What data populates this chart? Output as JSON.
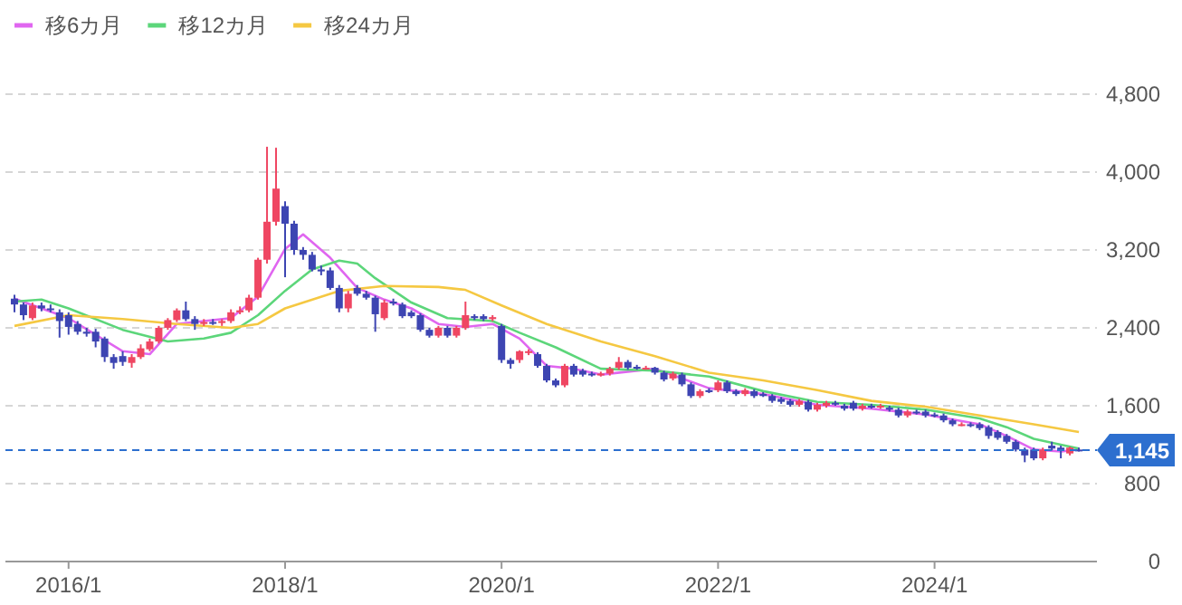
{
  "chart_data": {
    "type": "candlestick",
    "x": [
      "2015-07",
      "2015-08",
      "2015-09",
      "2015-10",
      "2015-11",
      "2015-12",
      "2016-01",
      "2016-02",
      "2016-03",
      "2016-04",
      "2016-05",
      "2016-06",
      "2016-07",
      "2016-08",
      "2016-09",
      "2016-10",
      "2016-11",
      "2016-12",
      "2017-01",
      "2017-02",
      "2017-03",
      "2017-04",
      "2017-05",
      "2017-06",
      "2017-07",
      "2017-08",
      "2017-09",
      "2017-10",
      "2017-11",
      "2017-12",
      "2018-01",
      "2018-02",
      "2018-03",
      "2018-04",
      "2018-05",
      "2018-06",
      "2018-07",
      "2018-08",
      "2018-09",
      "2018-10",
      "2018-11",
      "2018-12",
      "2019-01",
      "2019-02",
      "2019-03",
      "2019-04",
      "2019-05",
      "2019-06",
      "2019-07",
      "2019-08",
      "2019-09",
      "2019-10",
      "2019-11",
      "2019-12",
      "2020-01",
      "2020-02",
      "2020-03",
      "2020-04",
      "2020-05",
      "2020-06",
      "2020-07",
      "2020-08",
      "2020-09",
      "2020-10",
      "2020-11",
      "2020-12",
      "2021-01",
      "2021-02",
      "2021-03",
      "2021-04",
      "2021-05",
      "2021-06",
      "2021-07",
      "2021-08",
      "2021-09",
      "2021-10",
      "2021-11",
      "2021-12",
      "2022-01",
      "2022-02",
      "2022-03",
      "2022-04",
      "2022-05",
      "2022-06",
      "2022-07",
      "2022-08",
      "2022-09",
      "2022-10",
      "2022-11",
      "2022-12",
      "2023-01",
      "2023-02",
      "2023-03",
      "2023-04",
      "2023-05",
      "2023-06",
      "2023-07",
      "2023-08",
      "2023-09",
      "2023-10",
      "2023-11",
      "2023-12",
      "2024-01",
      "2024-02",
      "2024-03",
      "2024-04",
      "2024-05",
      "2024-06",
      "2024-07",
      "2024-08",
      "2024-09",
      "2024-10",
      "2024-11",
      "2024-12",
      "2025-01",
      "2025-02",
      "2025-03",
      "2025-04",
      "2025-05"
    ],
    "ohlc": [
      [
        2700,
        2740,
        2560,
        2640
      ],
      [
        2640,
        2660,
        2480,
        2530
      ],
      [
        2500,
        2660,
        2480,
        2630
      ],
      [
        2630,
        2660,
        2570,
        2600
      ],
      [
        2600,
        2640,
        2560,
        2590
      ],
      [
        2560,
        2590,
        2300,
        2470
      ],
      [
        2530,
        2560,
        2330,
        2410
      ],
      [
        2440,
        2470,
        2330,
        2360
      ],
      [
        2360,
        2400,
        2310,
        2340
      ],
      [
        2360,
        2390,
        2200,
        2260
      ],
      [
        2290,
        2310,
        2050,
        2100
      ],
      [
        2100,
        2130,
        1980,
        2040
      ],
      [
        2110,
        2160,
        2010,
        2050
      ],
      [
        2040,
        2130,
        1990,
        2100
      ],
      [
        2100,
        2230,
        2080,
        2190
      ],
      [
        2180,
        2290,
        2160,
        2260
      ],
      [
        2260,
        2420,
        2240,
        2400
      ],
      [
        2400,
        2500,
        2380,
        2480
      ],
      [
        2480,
        2600,
        2460,
        2580
      ],
      [
        2580,
        2670,
        2470,
        2490
      ],
      [
        2490,
        2520,
        2380,
        2440
      ],
      [
        2440,
        2490,
        2420,
        2460
      ],
      [
        2460,
        2490,
        2430,
        2450
      ],
      [
        2450,
        2490,
        2420,
        2470
      ],
      [
        2470,
        2590,
        2450,
        2560
      ],
      [
        2560,
        2620,
        2540,
        2580
      ],
      [
        2580,
        2740,
        2560,
        2710
      ],
      [
        2710,
        3120,
        2690,
        3100
      ],
      [
        3100,
        4260,
        3060,
        3490
      ],
      [
        3490,
        4250,
        3450,
        3830
      ],
      [
        3650,
        3700,
        2920,
        3470
      ],
      [
        3470,
        3500,
        3150,
        3200
      ],
      [
        3200,
        3230,
        3100,
        3150
      ],
      [
        3150,
        3180,
        2980,
        3000
      ],
      [
        3000,
        3040,
        2940,
        2980
      ],
      [
        2990,
        3020,
        2790,
        2810
      ],
      [
        2810,
        2840,
        2560,
        2600
      ],
      [
        2600,
        2780,
        2560,
        2750
      ],
      [
        2810,
        2840,
        2730,
        2750
      ],
      [
        2750,
        2780,
        2690,
        2710
      ],
      [
        2710,
        2730,
        2360,
        2540
      ],
      [
        2500,
        2690,
        2480,
        2660
      ],
      [
        2670,
        2700,
        2630,
        2650
      ],
      [
        2640,
        2660,
        2500,
        2520
      ],
      [
        2560,
        2580,
        2500,
        2520
      ],
      [
        2530,
        2550,
        2360,
        2380
      ],
      [
        2380,
        2400,
        2300,
        2320
      ],
      [
        2320,
        2420,
        2300,
        2400
      ],
      [
        2400,
        2420,
        2300,
        2320
      ],
      [
        2320,
        2420,
        2300,
        2400
      ],
      [
        2400,
        2670,
        2380,
        2530
      ],
      [
        2520,
        2540,
        2480,
        2500
      ],
      [
        2520,
        2540,
        2470,
        2490
      ],
      [
        2490,
        2530,
        2470,
        2510
      ],
      [
        2420,
        2440,
        2040,
        2070
      ],
      [
        2070,
        2090,
        1980,
        2030
      ],
      [
        2070,
        2170,
        2040,
        2160
      ],
      [
        2150,
        2180,
        2120,
        2160
      ],
      [
        2130,
        2150,
        1990,
        2010
      ],
      [
        2010,
        2030,
        1840,
        1860
      ],
      [
        1860,
        1880,
        1790,
        1810
      ],
      [
        1810,
        2030,
        1790,
        2010
      ],
      [
        2010,
        2030,
        1900,
        1920
      ],
      [
        1960,
        1980,
        1900,
        1920
      ],
      [
        1930,
        1950,
        1900,
        1920
      ],
      [
        1920,
        1950,
        1900,
        1930
      ],
      [
        1930,
        2000,
        1910,
        1980
      ],
      [
        1990,
        2100,
        1970,
        2050
      ],
      [
        2050,
        2070,
        1970,
        1990
      ],
      [
        2000,
        2020,
        1970,
        1990
      ],
      [
        1990,
        2010,
        1970,
        1990
      ],
      [
        1990,
        2000,
        1920,
        1940
      ],
      [
        1940,
        1960,
        1850,
        1870
      ],
      [
        1880,
        1950,
        1860,
        1930
      ],
      [
        1920,
        1940,
        1800,
        1820
      ],
      [
        1820,
        1840,
        1680,
        1700
      ],
      [
        1700,
        1770,
        1680,
        1750
      ],
      [
        1760,
        1780,
        1730,
        1740
      ],
      [
        1760,
        1860,
        1740,
        1840
      ],
      [
        1840,
        1860,
        1730,
        1750
      ],
      [
        1750,
        1770,
        1700,
        1720
      ],
      [
        1720,
        1780,
        1700,
        1760
      ],
      [
        1750,
        1770,
        1680,
        1700
      ],
      [
        1720,
        1740,
        1690,
        1700
      ],
      [
        1700,
        1720,
        1630,
        1650
      ],
      [
        1670,
        1690,
        1620,
        1640
      ],
      [
        1650,
        1670,
        1590,
        1610
      ],
      [
        1610,
        1670,
        1590,
        1650
      ],
      [
        1640,
        1660,
        1540,
        1560
      ],
      [
        1560,
        1630,
        1540,
        1610
      ],
      [
        1600,
        1650,
        1580,
        1630
      ],
      [
        1630,
        1650,
        1600,
        1620
      ],
      [
        1600,
        1620,
        1550,
        1570
      ],
      [
        1630,
        1650,
        1550,
        1570
      ],
      [
        1570,
        1620,
        1550,
        1600
      ],
      [
        1600,
        1620,
        1570,
        1590
      ],
      [
        1590,
        1620,
        1570,
        1600
      ],
      [
        1580,
        1600,
        1540,
        1560
      ],
      [
        1560,
        1580,
        1480,
        1500
      ],
      [
        1500,
        1560,
        1480,
        1540
      ],
      [
        1540,
        1560,
        1510,
        1530
      ],
      [
        1540,
        1560,
        1480,
        1500
      ],
      [
        1510,
        1530,
        1480,
        1500
      ],
      [
        1500,
        1520,
        1430,
        1450
      ],
      [
        1450,
        1470,
        1390,
        1410
      ],
      [
        1410,
        1430,
        1390,
        1410
      ],
      [
        1410,
        1430,
        1380,
        1400
      ],
      [
        1410,
        1430,
        1350,
        1370
      ],
      [
        1380,
        1400,
        1260,
        1290
      ],
      [
        1330,
        1350,
        1250,
        1270
      ],
      [
        1290,
        1310,
        1210,
        1230
      ],
      [
        1230,
        1250,
        1130,
        1150
      ],
      [
        1150,
        1170,
        1020,
        1090
      ],
      [
        1150,
        1170,
        1040,
        1060
      ],
      [
        1060,
        1170,
        1040,
        1150
      ],
      [
        1190,
        1230,
        1140,
        1160
      ],
      [
        1170,
        1190,
        1060,
        1140
      ],
      [
        1110,
        1180,
        1090,
        1170
      ],
      [
        1150,
        1170,
        1130,
        1145
      ]
    ],
    "series": [
      {
        "name": "移6カ月",
        "type": "line",
        "color": "#e066f0",
        "x": [
          "2015-07",
          "2016-01",
          "2016-07",
          "2016-10",
          "2017-01",
          "2017-04",
          "2017-07",
          "2017-10",
          "2018-01",
          "2018-03",
          "2018-06",
          "2018-09",
          "2018-12",
          "2019-03",
          "2019-06",
          "2019-09",
          "2019-12",
          "2020-03",
          "2020-06",
          "2020-09",
          "2020-12",
          "2021-06",
          "2021-12",
          "2022-06",
          "2022-12",
          "2023-06",
          "2023-12",
          "2024-06",
          "2024-09",
          "2024-12",
          "2025-03",
          "2025-05"
        ],
        "values": [
          2700,
          2500,
          2160,
          2130,
          2440,
          2470,
          2500,
          2720,
          3210,
          3360,
          3120,
          2810,
          2690,
          2600,
          2440,
          2410,
          2440,
          2290,
          2010,
          1980,
          1920,
          1980,
          1780,
          1720,
          1610,
          1570,
          1510,
          1410,
          1290,
          1150,
          1130,
          1150
        ]
      },
      {
        "name": "移12カ月",
        "type": "line",
        "color": "#5cd67a",
        "x": [
          "2015-07",
          "2015-10",
          "2016-01",
          "2016-07",
          "2016-12",
          "2017-04",
          "2017-07",
          "2017-10",
          "2018-01",
          "2018-04",
          "2018-07",
          "2018-09",
          "2018-11",
          "2019-03",
          "2019-07",
          "2019-12",
          "2020-03",
          "2020-07",
          "2020-12",
          "2021-06",
          "2021-12",
          "2022-06",
          "2022-12",
          "2023-06",
          "2023-12",
          "2024-06",
          "2024-09",
          "2024-12",
          "2025-03",
          "2025-05"
        ],
        "values": [
          2670,
          2690,
          2600,
          2380,
          2260,
          2290,
          2350,
          2530,
          2780,
          3000,
          3090,
          3060,
          2910,
          2660,
          2500,
          2470,
          2350,
          2200,
          1980,
          1960,
          1900,
          1750,
          1640,
          1610,
          1560,
          1470,
          1380,
          1260,
          1200,
          1160
        ]
      },
      {
        "name": "移24カ月",
        "type": "line",
        "color": "#f5c842",
        "x": [
          "2015-07",
          "2016-01",
          "2016-07",
          "2017-01",
          "2017-07",
          "2017-10",
          "2018-01",
          "2018-07",
          "2018-12",
          "2019-06",
          "2019-09",
          "2020-01",
          "2020-06",
          "2020-12",
          "2021-06",
          "2021-12",
          "2022-06",
          "2022-12",
          "2023-06",
          "2023-12",
          "2024-06",
          "2024-12",
          "2025-05"
        ],
        "values": [
          2420,
          2530,
          2490,
          2440,
          2400,
          2440,
          2600,
          2780,
          2830,
          2820,
          2790,
          2630,
          2440,
          2260,
          2110,
          1940,
          1860,
          1760,
          1650,
          1590,
          1500,
          1410,
          1330
        ]
      }
    ],
    "xlim": [
      "2015-06",
      "2025-07"
    ],
    "xticks": [
      {
        "value": "2016-01",
        "label": "2016/1"
      },
      {
        "value": "2018-01",
        "label": "2018/1"
      },
      {
        "value": "2020-01",
        "label": "2020/1"
      },
      {
        "value": "2022-01",
        "label": "2022/1"
      },
      {
        "value": "2024-01",
        "label": "2024/1"
      }
    ],
    "ylim": [
      0,
      4800
    ],
    "yticks": [
      0,
      800,
      {
        "value": 1600,
        "label": "1,600"
      },
      {
        "value": 2400,
        "label": "2,400"
      },
      {
        "value": 3200,
        "label": "3,200"
      },
      {
        "value": 4000,
        "label": "4,000"
      },
      {
        "value": 4800,
        "label": "4,800"
      }
    ],
    "ref_lines": [
      {
        "axis": "y",
        "value": 1145,
        "label": "1,145",
        "color": "#2d6fcf",
        "line_style": "dashed"
      }
    ],
    "grid": "y",
    "legend": "top left"
  }
}
